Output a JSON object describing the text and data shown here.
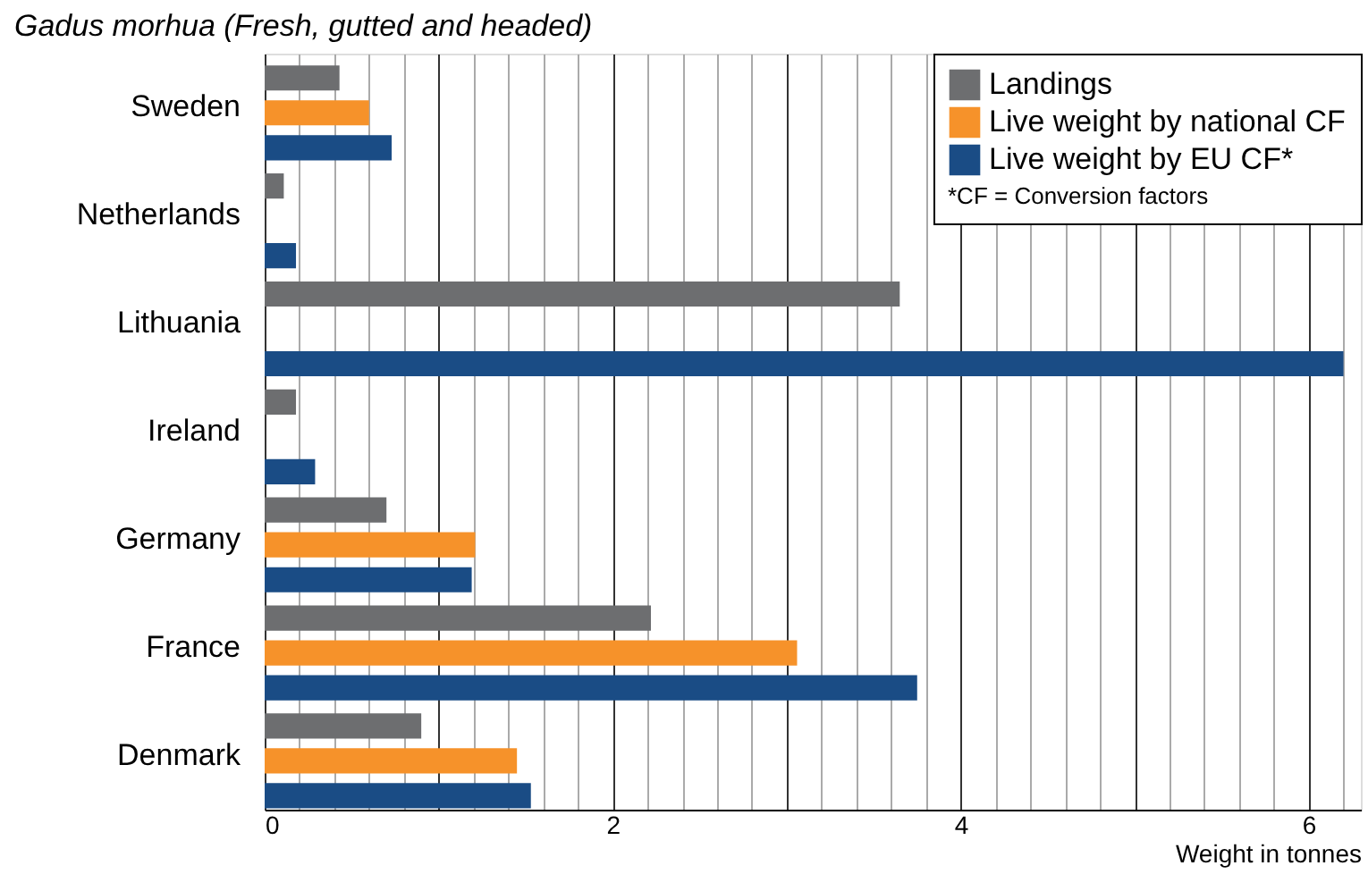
{
  "chart_data": {
    "type": "bar",
    "orientation": "horizontal",
    "title": "Gadus morhua (Fresh, gutted and headed)",
    "xlabel": "Weight in tonnes",
    "categories": [
      "Sweden",
      "Netherlands",
      "Lithuania",
      "Ireland",
      "Germany",
      "France",
      "Denmark"
    ],
    "series": [
      {
        "name": "Landings",
        "color": "#6d6e70",
        "values": [
          0.43,
          0.11,
          3.65,
          0.18,
          0.7,
          2.22,
          0.9
        ]
      },
      {
        "name": "Live weight by national CF",
        "color": "#f6922a",
        "values": [
          0.6,
          null,
          null,
          null,
          1.21,
          3.06,
          1.45
        ]
      },
      {
        "name": "Live weight by EU CF*",
        "color": "#1a4c85",
        "values": [
          0.73,
          0.18,
          6.2,
          0.29,
          1.19,
          3.75,
          1.53
        ]
      }
    ],
    "xlim": [
      0,
      6.3
    ],
    "xticks": [
      0,
      {
        "value": 0.2,
        "label": null
      },
      {
        "value": 0.4,
        "label": null
      },
      {
        "value": 0.6,
        "label": null
      },
      {
        "value": 0.8,
        "label": null
      },
      {
        "value": 1,
        "label": null
      },
      {
        "value": 1.2,
        "label": null
      },
      {
        "value": 1.4,
        "label": null
      },
      {
        "value": 1.6,
        "label": null
      },
      {
        "value": 1.8,
        "label": null
      },
      2,
      {
        "value": 2.2,
        "label": null
      },
      {
        "value": 2.4,
        "label": null
      },
      {
        "value": 2.6,
        "label": null
      },
      {
        "value": 2.8,
        "label": null
      },
      {
        "value": 3,
        "label": null
      },
      {
        "value": 3.2,
        "label": null
      },
      {
        "value": 3.4,
        "label": null
      },
      {
        "value": 3.6,
        "label": null
      },
      {
        "value": 3.8,
        "label": null
      },
      4,
      {
        "value": 4.2,
        "label": null
      },
      {
        "value": 4.4,
        "label": null
      },
      {
        "value": 4.6,
        "label": null
      },
      {
        "value": 4.8,
        "label": null
      },
      {
        "value": 5,
        "label": null
      },
      {
        "value": 5.2,
        "label": null
      },
      {
        "value": 5.4,
        "label": null
      },
      {
        "value": 5.6,
        "label": null
      },
      {
        "value": 5.8,
        "label": null
      },
      6,
      {
        "value": 6.2,
        "label": null
      }
    ],
    "grid": "x",
    "legend": "top right",
    "annotations": [
      "*CF = Conversion factors"
    ]
  }
}
